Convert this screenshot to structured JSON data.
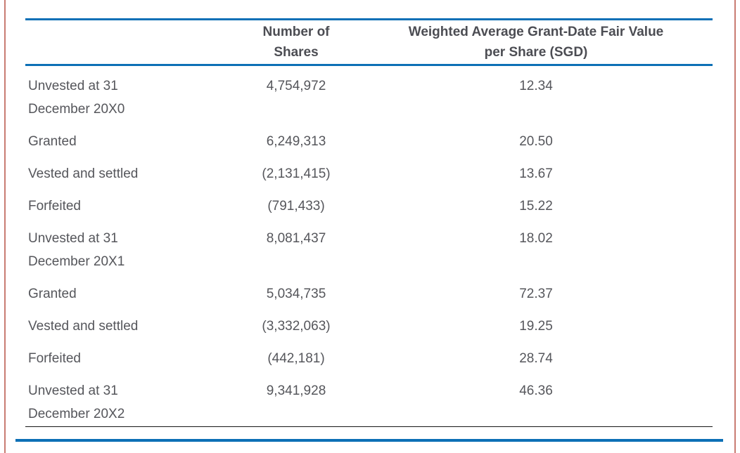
{
  "page": {
    "accent_blue": "#0d70b6",
    "edge_border_red": "#c97c72",
    "closing_rule_black": "#151515",
    "text_color": "#55565b"
  },
  "table": {
    "columns": [
      {
        "label_lines": [
          ""
        ]
      },
      {
        "label_lines": [
          "Number of",
          "Shares"
        ]
      },
      {
        "label_lines": [
          "Weighted Average Grant-Date Fair Value",
          "per Share (SGD)"
        ]
      }
    ],
    "rows": [
      {
        "label_lines": [
          "Unvested at 31",
          "December 20X0"
        ],
        "shares": "4,754,972",
        "fair_value": "12.34"
      },
      {
        "label_lines": [
          "Granted"
        ],
        "shares": "6,249,313",
        "fair_value": "20.50"
      },
      {
        "label_lines": [
          "Vested and settled"
        ],
        "shares": "(2,131,415)",
        "fair_value": "13.67"
      },
      {
        "label_lines": [
          "Forfeited"
        ],
        "shares": "(791,433)",
        "fair_value": "15.22"
      },
      {
        "label_lines": [
          "Unvested at 31",
          "December 20X1"
        ],
        "shares": "8,081,437",
        "fair_value": "18.02"
      },
      {
        "label_lines": [
          "Granted"
        ],
        "shares": "5,034,735",
        "fair_value": "72.37"
      },
      {
        "label_lines": [
          "Vested and settled"
        ],
        "shares": "(3,332,063)",
        "fair_value": "19.25"
      },
      {
        "label_lines": [
          "Forfeited"
        ],
        "shares": "(442,181)",
        "fair_value": "28.74"
      },
      {
        "label_lines": [
          "Unvested at 31",
          "December 20X2"
        ],
        "shares": "9,341,928",
        "fair_value": "46.36"
      }
    ]
  }
}
